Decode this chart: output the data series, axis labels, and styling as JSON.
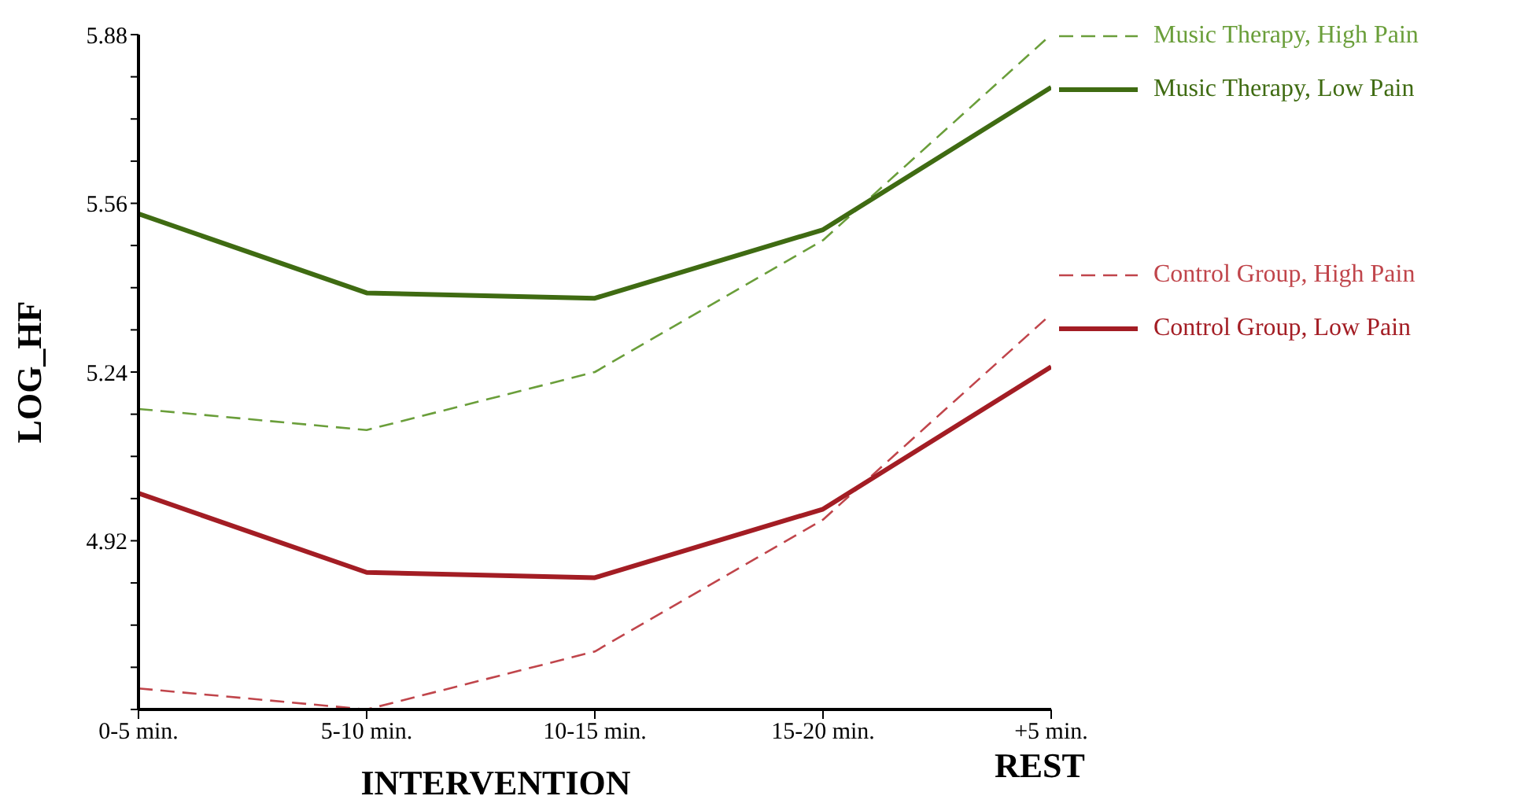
{
  "chart_data": {
    "type": "line",
    "xlabel": "INTERVENTION",
    "ylabel": "LOG_HF",
    "annotations": [
      "REST"
    ],
    "categories": [
      "0-5 min.",
      "5-10 min.",
      "10-15 min.",
      "15-20 min.",
      "+5 min."
    ],
    "ylim": [
      4.6,
      5.88
    ],
    "yticks": [
      {
        "value": 4.6,
        "label": null
      },
      {
        "value": 4.68,
        "label": null
      },
      {
        "value": 4.76,
        "label": null
      },
      {
        "value": 4.84,
        "label": null
      },
      4.92,
      {
        "value": 5.0,
        "label": null
      },
      {
        "value": 5.08,
        "label": null
      },
      {
        "value": 5.16,
        "label": null
      },
      5.24,
      {
        "value": 5.32,
        "label": null
      },
      {
        "value": 5.4,
        "label": null
      },
      {
        "value": 5.48,
        "label": null
      },
      5.56,
      {
        "value": 5.64,
        "label": null
      },
      {
        "value": 5.72,
        "label": null
      },
      {
        "value": 5.8,
        "label": null
      },
      5.88
    ],
    "grid": false,
    "legend": "top right",
    "marker": "none",
    "series": [
      {
        "name": "Music Therapy, High Pain",
        "color": "#6a9e3a",
        "line_style": "dashed",
        "values": [
          5.17,
          5.13,
          5.24,
          5.49,
          5.88
        ]
      },
      {
        "name": "Music Therapy, Low Pain",
        "color": "#3f6b12",
        "line_style": "solid",
        "values": [
          5.54,
          5.39,
          5.38,
          5.51,
          5.78
        ]
      },
      {
        "name": "Control Group, High Pain",
        "color": "#c0454b",
        "line_style": "dashed",
        "values": [
          4.64,
          4.6,
          4.71,
          4.96,
          5.35
        ]
      },
      {
        "name": "Control Group, Low Pain",
        "color": "#a31d24",
        "line_style": "solid",
        "values": [
          5.01,
          4.86,
          4.85,
          4.98,
          5.25
        ]
      }
    ]
  }
}
